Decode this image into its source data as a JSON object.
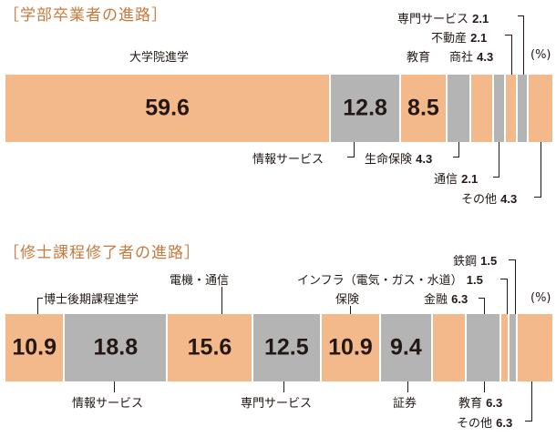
{
  "charts": [
    {
      "title": "［学部卒業者の進路］",
      "unit": "(%)",
      "segments": [
        {
          "name": "大学院進学",
          "value": 59.6,
          "color": "#f4b98a",
          "show_value": true
        },
        {
          "name": "情報サービス",
          "value": 12.8,
          "color": "#b4b4b5",
          "show_value": true
        },
        {
          "name": "教育",
          "value": 8.5,
          "color": "#f4b98a",
          "show_value": true
        },
        {
          "name": "生命保険",
          "value": 4.3,
          "color": "#b4b4b5",
          "show_value": false
        },
        {
          "name": "商社",
          "value": 4.3,
          "color": "#f4b98a",
          "show_value": false
        },
        {
          "name": "通信",
          "value": 2.1,
          "color": "#b4b4b5",
          "show_value": false
        },
        {
          "name": "不動産",
          "value": 2.1,
          "color": "#f4b98a",
          "show_value": false
        },
        {
          "name": "専門サービス",
          "value": 2.1,
          "color": "#b4b4b5",
          "show_value": false
        },
        {
          "name": "その他",
          "value": 4.3,
          "color": "#f4b98a",
          "show_value": false
        }
      ],
      "labels": [
        {
          "name": "大学院進学",
          "value": ""
        },
        {
          "name": "教育",
          "value": ""
        },
        {
          "name": "商社",
          "value": "4.3"
        },
        {
          "name": "不動産",
          "value": "2.1"
        },
        {
          "name": "専門サービス",
          "value": "2.1"
        },
        {
          "name": "情報サービス",
          "value": ""
        },
        {
          "name": "生命保険",
          "value": "4.3"
        },
        {
          "name": "通信",
          "value": "2.1"
        },
        {
          "name": "その他",
          "value": "4.3"
        }
      ]
    },
    {
      "title": "［修士課程修了者の進路］",
      "unit": "(%)",
      "segments": [
        {
          "name": "博士後期課程進学",
          "value": 10.9,
          "color": "#f4b98a",
          "show_value": true
        },
        {
          "name": "情報サービス",
          "value": 18.8,
          "color": "#b4b4b5",
          "show_value": true
        },
        {
          "name": "電機・通信",
          "value": 15.6,
          "color": "#f4b98a",
          "show_value": true
        },
        {
          "name": "専門サービス",
          "value": 12.5,
          "color": "#b4b4b5",
          "show_value": true
        },
        {
          "name": "保険",
          "value": 10.9,
          "color": "#f4b98a",
          "show_value": true
        },
        {
          "name": "証券",
          "value": 9.4,
          "color": "#b4b4b5",
          "show_value": true
        },
        {
          "name": "金融",
          "value": 6.3,
          "color": "#f4b98a",
          "show_value": false
        },
        {
          "name": "教育",
          "value": 6.3,
          "color": "#b4b4b5",
          "show_value": false
        },
        {
          "name": "インフラ（電気・ガス・水道）",
          "value": 1.5,
          "color": "#f4b98a",
          "show_value": false
        },
        {
          "name": "鉄鋼",
          "value": 1.5,
          "color": "#b4b4b5",
          "show_value": false
        },
        {
          "name": "その他",
          "value": 6.3,
          "color": "#f4b98a",
          "show_value": false
        }
      ],
      "labels": [
        {
          "name": "博士後期課程進学",
          "value": ""
        },
        {
          "name": "電機・通信",
          "value": ""
        },
        {
          "name": "保険",
          "value": ""
        },
        {
          "name": "金融",
          "value": "6.3"
        },
        {
          "name": "インフラ（電気・ガス・水道）",
          "value": "1.5"
        },
        {
          "name": "鉄鋼",
          "value": "1.5"
        },
        {
          "name": "情報サービス",
          "value": ""
        },
        {
          "name": "専門サービス",
          "value": ""
        },
        {
          "name": "証券",
          "value": ""
        },
        {
          "name": "教育",
          "value": "6.3"
        },
        {
          "name": "その他",
          "value": "6.3"
        }
      ]
    }
  ],
  "chart_data": [
    {
      "type": "bar",
      "stacked": true,
      "title": "［学部卒業者の進路］",
      "unit": "(%)",
      "categories": [
        "大学院進学",
        "情報サービス",
        "教育",
        "生命保険",
        "商社",
        "通信",
        "不動産",
        "専門サービス",
        "その他"
      ],
      "values": [
        59.6,
        12.8,
        8.5,
        4.3,
        4.3,
        2.1,
        2.1,
        2.1,
        4.3
      ]
    },
    {
      "type": "bar",
      "stacked": true,
      "title": "［修士課程修了者の進路］",
      "unit": "(%)",
      "categories": [
        "博士後期課程進学",
        "情報サービス",
        "電機・通信",
        "専門サービス",
        "保険",
        "証券",
        "金融",
        "教育",
        "インフラ（電気・ガス・水道）",
        "鉄鋼",
        "その他"
      ],
      "values": [
        10.9,
        18.8,
        15.6,
        12.5,
        10.9,
        9.4,
        6.3,
        6.3,
        1.5,
        1.5,
        6.3
      ]
    }
  ]
}
